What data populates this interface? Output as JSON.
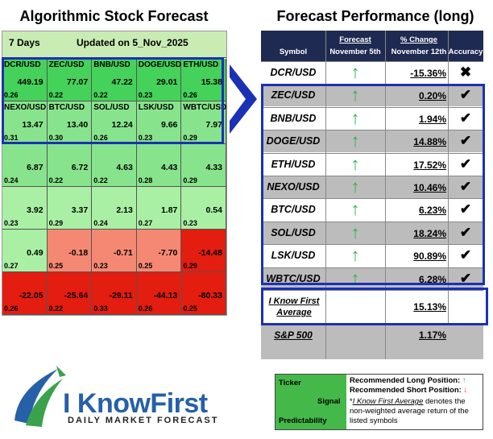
{
  "left": {
    "title": "Algorithmic Stock Forecast",
    "horizon": "7 Days",
    "updated": "Updated on 5_Nov_2025",
    "cells": [
      {
        "symbol": "DCR/USD",
        "value": "449.19",
        "predictability": "0.26",
        "color": "#45d25a"
      },
      {
        "symbol": "ZEC/USD",
        "value": "77.07",
        "predictability": "0.22",
        "color": "#45d25a"
      },
      {
        "symbol": "BNB/USD",
        "value": "47.22",
        "predictability": "0.22",
        "color": "#45d25a"
      },
      {
        "symbol": "DOGE/USD",
        "value": "29.01",
        "predictability": "0.23",
        "color": "#45d25a"
      },
      {
        "symbol": "ETH/USD",
        "value": "15.38",
        "predictability": "0.26",
        "color": "#45d25a"
      },
      {
        "symbol": "NEXO/USD",
        "value": "13.47",
        "predictability": "0.31",
        "color": "#88e48c"
      },
      {
        "symbol": "BTC/USD",
        "value": "13.40",
        "predictability": "0.30",
        "color": "#88e48c"
      },
      {
        "symbol": "SOL/USD",
        "value": "12.24",
        "predictability": "0.26",
        "color": "#88e48c"
      },
      {
        "symbol": "LSK/USD",
        "value": "9.66",
        "predictability": "0.23",
        "color": "#88e48c"
      },
      {
        "symbol": "WBTC/USD",
        "value": "7.97",
        "predictability": "0.29",
        "color": "#88e48c"
      },
      {
        "symbol": "",
        "value": "6.87",
        "predictability": "0.24",
        "color": "#88e48c"
      },
      {
        "symbol": "",
        "value": "6.72",
        "predictability": "0.22",
        "color": "#88e48c"
      },
      {
        "symbol": "",
        "value": "4.63",
        "predictability": "0.22",
        "color": "#88e48c"
      },
      {
        "symbol": "",
        "value": "4.43",
        "predictability": "0.28",
        "color": "#88e48c"
      },
      {
        "symbol": "",
        "value": "4.33",
        "predictability": "0.29",
        "color": "#88e48c"
      },
      {
        "symbol": "",
        "value": "3.92",
        "predictability": "0.23",
        "color": "#a9f0a4"
      },
      {
        "symbol": "",
        "value": "3.37",
        "predictability": "0.29",
        "color": "#a9f0a4"
      },
      {
        "symbol": "",
        "value": "2.13",
        "predictability": "0.24",
        "color": "#a9f0a4"
      },
      {
        "symbol": "",
        "value": "1.87",
        "predictability": "0.27",
        "color": "#a9f0a4"
      },
      {
        "symbol": "",
        "value": "0.54",
        "predictability": "0.23",
        "color": "#a9f0a4"
      },
      {
        "symbol": "",
        "value": "0.49",
        "predictability": "0.27",
        "color": "#a9f0a4"
      },
      {
        "symbol": "",
        "value": "-0.18",
        "predictability": "0.25",
        "color": "#f58873"
      },
      {
        "symbol": "",
        "value": "-0.71",
        "predictability": "0.23",
        "color": "#f58873"
      },
      {
        "symbol": "",
        "value": "-7.70",
        "predictability": "0.25",
        "color": "#f58873"
      },
      {
        "symbol": "",
        "value": "-14.48",
        "predictability": "0.29",
        "color": "#e31d0f"
      },
      {
        "symbol": "",
        "value": "-22.05",
        "predictability": "0.26",
        "color": "#e31d0f"
      },
      {
        "symbol": "",
        "value": "-25.64",
        "predictability": "0.22",
        "color": "#e31d0f"
      },
      {
        "symbol": "",
        "value": "-29.11",
        "predictability": "0.33",
        "color": "#e31d0f"
      },
      {
        "symbol": "",
        "value": "-44.13",
        "predictability": "0.26",
        "color": "#e31d0f"
      },
      {
        "symbol": "",
        "value": "-80.33",
        "predictability": "0.25",
        "color": "#e31d0f"
      }
    ]
  },
  "right": {
    "title": "Forecast Performance (long)",
    "headers": {
      "symbol": "Symbol",
      "forecast": "Forecast",
      "forecast_date": "November 5th",
      "change": "% Change",
      "change_date": "November 12th",
      "accuracy": "Accuracy"
    },
    "rows": [
      {
        "symbol": "DCR/USD",
        "arrow": "↑",
        "change": "-15.36%",
        "accuracy": "✖",
        "shade": "white"
      },
      {
        "symbol": "ZEC/USD",
        "arrow": "↑",
        "change": "0.20%",
        "accuracy": "✔",
        "shade": "gray"
      },
      {
        "symbol": "BNB/USD",
        "arrow": "↑",
        "change": "1.94%",
        "accuracy": "✔",
        "shade": "white"
      },
      {
        "symbol": "DOGE/USD",
        "arrow": "↑",
        "change": "14.88%",
        "accuracy": "✔",
        "shade": "gray"
      },
      {
        "symbol": "ETH/USD",
        "arrow": "↑",
        "change": "17.52%",
        "accuracy": "✔",
        "shade": "white"
      },
      {
        "symbol": "NEXO/USD",
        "arrow": "↑",
        "change": "10.46%",
        "accuracy": "✔",
        "shade": "gray"
      },
      {
        "symbol": "BTC/USD",
        "arrow": "↑",
        "change": "6.23%",
        "accuracy": "✔",
        "shade": "white"
      },
      {
        "symbol": "SOL/USD",
        "arrow": "↑",
        "change": "18.24%",
        "accuracy": "✔",
        "shade": "gray"
      },
      {
        "symbol": "LSK/USD",
        "arrow": "↑",
        "change": "90.89%",
        "accuracy": "✔",
        "shade": "white"
      },
      {
        "symbol": "WBTC/USD",
        "arrow": "↑",
        "change": "6.28%",
        "accuracy": "✔",
        "shade": "gray"
      }
    ],
    "average": {
      "label_line1": "I Know First",
      "label_line2": "Average",
      "change": "15.13%"
    },
    "benchmark": {
      "label": "S&P 500",
      "change": "1.17%"
    }
  },
  "logo": {
    "name": "I KnowFirst",
    "tagline": "DAILY MARKET FORECAST"
  },
  "legend": {
    "ticker": "Ticker",
    "signal": "Signal",
    "predictability": "Predictability",
    "long_position": "Recommended Long Position:",
    "short_position": "Recommended Short Position:",
    "note_prefix": "*",
    "note_link": "I Know First Average",
    "note_text": " denotes the non-weighted average return of the listed symbols"
  },
  "colors": {
    "accent_blue": "#1b31b5",
    "header_navy": "#1e2a52",
    "up_arrow": "#2bb34a",
    "down_arrow": "#e31d0f"
  }
}
